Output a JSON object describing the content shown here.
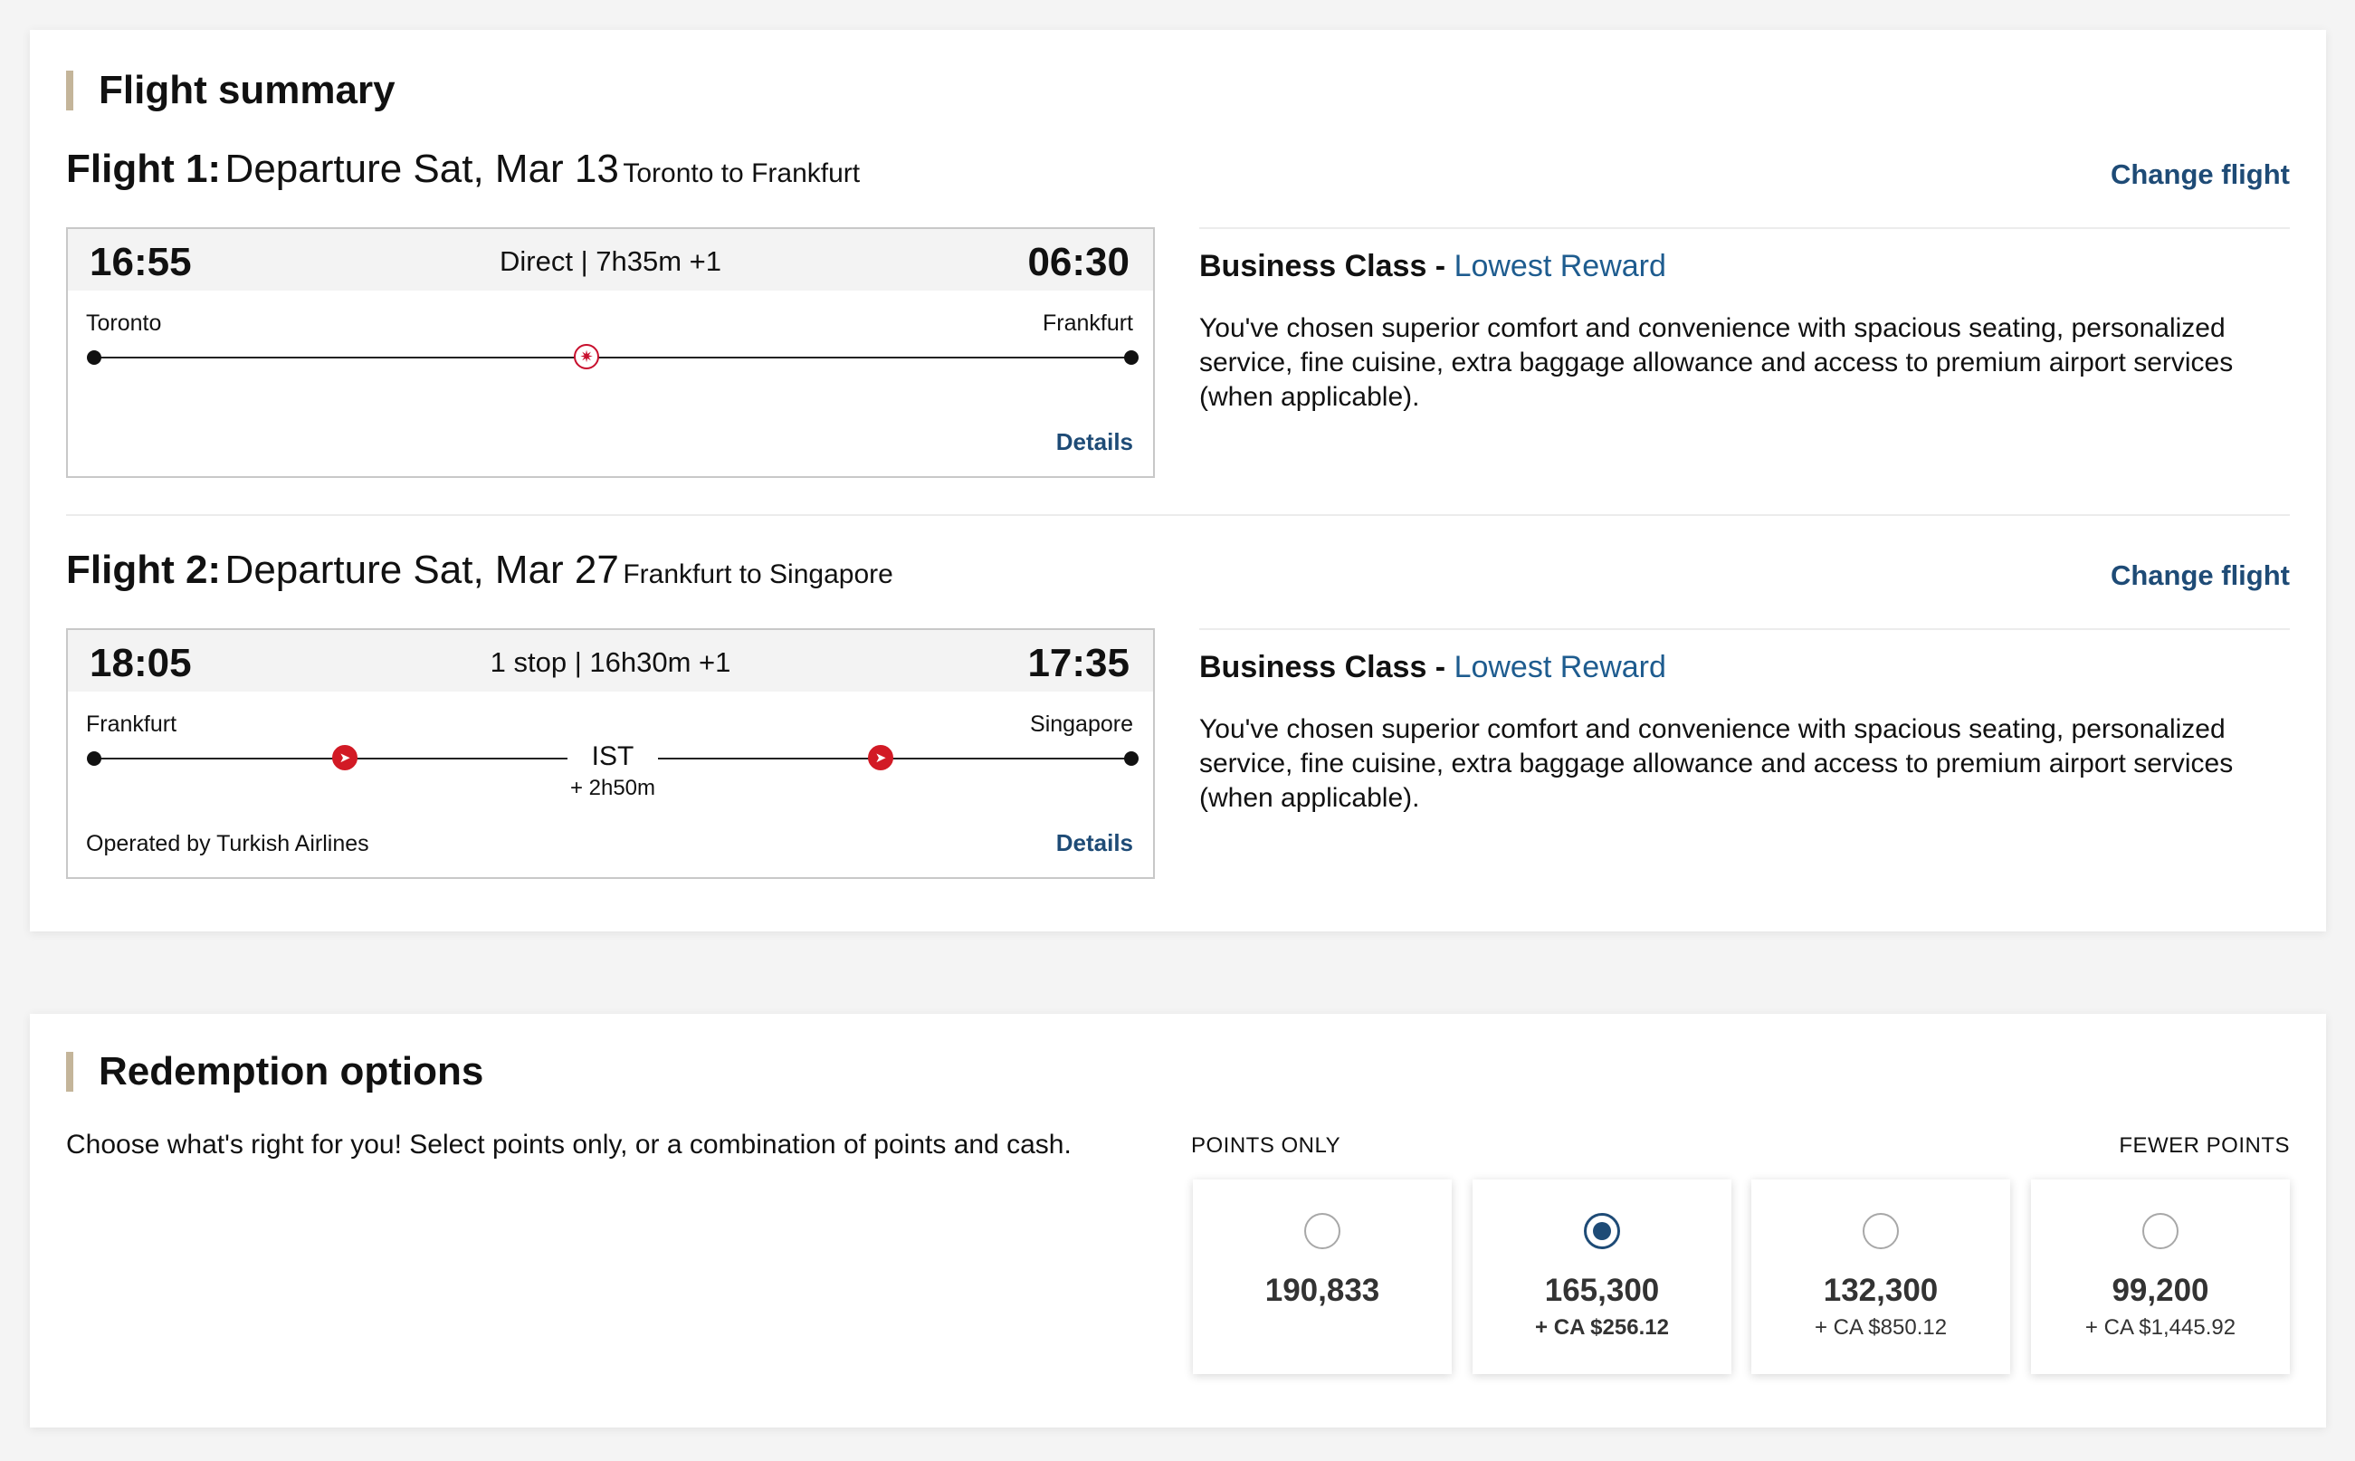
{
  "summary": {
    "title": "Flight summary",
    "flights": [
      {
        "num": "Flight 1:",
        "date": "Departure Sat, Mar 13",
        "route": "Toronto to Frankfurt",
        "change_label": "Change flight",
        "depart_time": "16:55",
        "arrive_time": "06:30",
        "duration": "Direct | 7h35m +1",
        "from": "Toronto",
        "to": "Frankfurt",
        "details_label": "Details",
        "fare_class": "Business Class - ",
        "fare_type": "Lowest Reward",
        "fare_desc": "You've chosen superior comfort and convenience with spacious seating, personalized service, fine cuisine, extra baggage allowance and access to premium airport services (when applicable).",
        "carrier_icon": "maple-leaf-icon"
      },
      {
        "num": "Flight 2:",
        "date": "Departure Sat, Mar 27",
        "route": "Frankfurt to Singapore",
        "change_label": "Change flight",
        "depart_time": "18:05",
        "arrive_time": "17:35",
        "duration": "1 stop | 16h30m +1",
        "from": "Frankfurt",
        "to": "Singapore",
        "stop_code": "IST",
        "layover": "+ 2h50m",
        "operated_by": "Operated by Turkish Airlines",
        "details_label": "Details",
        "fare_class": "Business Class - ",
        "fare_type": "Lowest Reward",
        "fare_desc": "You've chosen superior comfort and convenience with spacious seating, personalized service, fine cuisine, extra baggage allowance and access to premium airport services (when applicable).",
        "carrier_icon": "turkish-airlines-icon"
      }
    ]
  },
  "redemption": {
    "title": "Redemption options",
    "intro": "Choose what's right for you! Select points only, or a combination of points and cash.",
    "label_left": "POINTS ONLY",
    "label_right": "FEWER POINTS",
    "options": [
      {
        "points": "190,833",
        "cash": "",
        "selected": false
      },
      {
        "points": "165,300",
        "cash": "+ CA $256.12",
        "selected": true
      },
      {
        "points": "132,300",
        "cash": "+ CA $850.12",
        "selected": false
      },
      {
        "points": "99,200",
        "cash": "+ CA $1,445.92",
        "selected": false
      }
    ]
  },
  "colors": {
    "link": "#1e4b76",
    "accent_bar": "#c4b59a",
    "carrier_red": "#c8102e"
  }
}
